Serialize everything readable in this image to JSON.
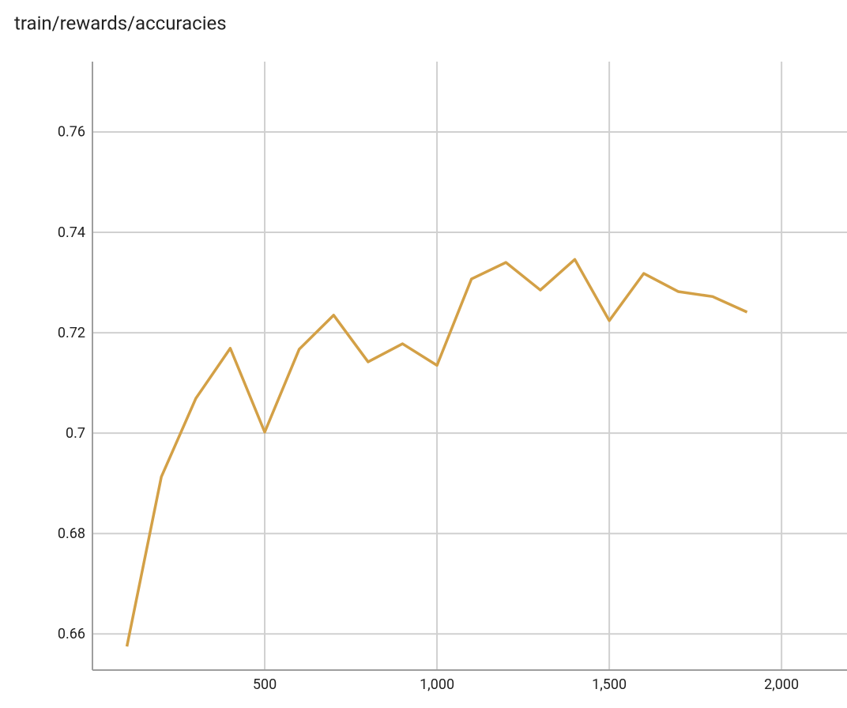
{
  "chart_data": {
    "type": "line",
    "title": "train/rewards/accuracies",
    "x": [
      100,
      200,
      300,
      400,
      500,
      600,
      700,
      800,
      900,
      1000,
      1100,
      1200,
      1300,
      1400,
      1500,
      1600,
      1700,
      1800,
      1900
    ],
    "values": [
      0.6575,
      0.6913,
      0.7069,
      0.7169,
      0.7002,
      0.7167,
      0.7235,
      0.7142,
      0.7178,
      0.7135,
      0.7307,
      0.734,
      0.7285,
      0.7346,
      0.7224,
      0.7318,
      0.7282,
      0.7272,
      0.7241
    ],
    "color": "#d3a046",
    "xlim": [
      0,
      2190
    ],
    "xticks": [
      500,
      {
        "value": 1000,
        "label": "1,000"
      },
      {
        "value": 1500,
        "label": "1,500"
      },
      {
        "value": 2000,
        "label": "2,000"
      }
    ],
    "ylim": [
      0.6528,
      0.774
    ],
    "yticks": [
      0.66,
      0.68,
      0.7,
      0.72,
      0.74,
      0.76
    ],
    "grid": true
  }
}
